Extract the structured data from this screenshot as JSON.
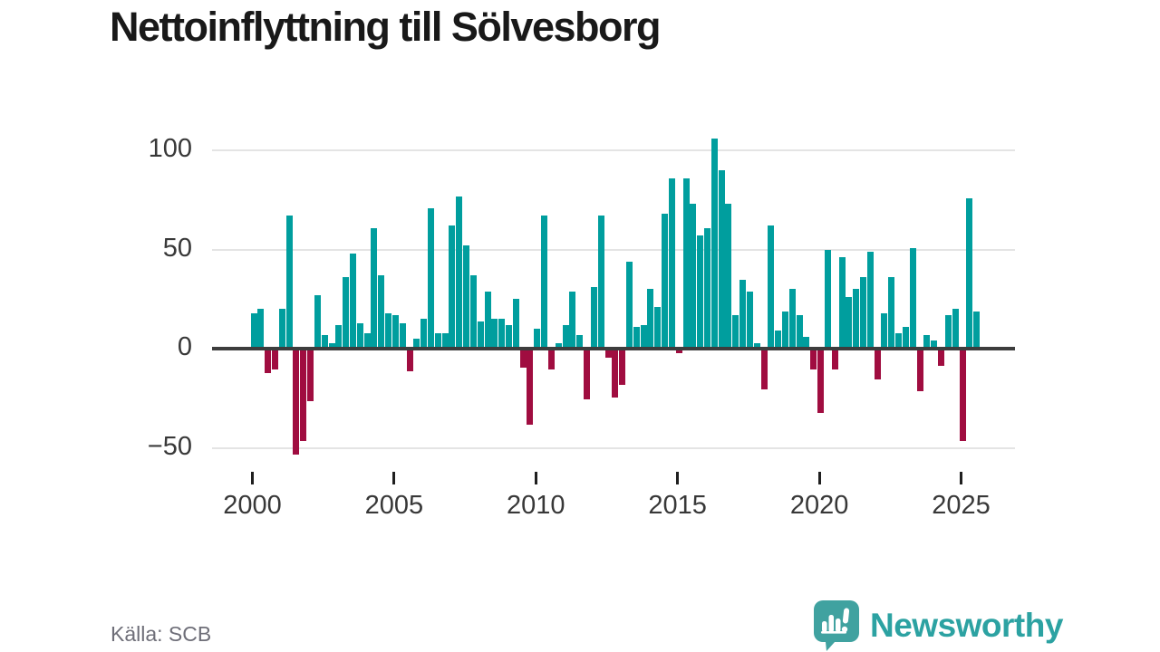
{
  "title": "Nettoinflyttning till Sölvesborg",
  "source": "Källa: SCB",
  "logo": {
    "text": "Newsworthy",
    "icon": "newsworthy-speech-bubble-bar-chart-icon"
  },
  "colors": {
    "positive_bar": "#009e9e",
    "negative_bar": "#a00d40",
    "title_text": "#191919",
    "axis_text": "#383838",
    "gridline": "#e4e4e4",
    "zero_line": "#3d3d3d",
    "source_text": "#6e6e78",
    "logo_teal": "#40a2a0"
  },
  "chart_data": {
    "type": "bar",
    "title": "Nettoinflyttning till Sölvesborg",
    "frequency": "quarterly",
    "start_period": "2000-Q1",
    "end_period": "2025-Q3",
    "values": [
      17,
      19,
      -12,
      -10,
      19,
      66,
      -53,
      -46,
      -26,
      26,
      6,
      2,
      11,
      35,
      47,
      12,
      7,
      60,
      36,
      17,
      16,
      12,
      -11,
      4,
      14,
      70,
      7,
      7,
      61,
      76,
      51,
      36,
      13,
      28,
      14,
      14,
      11,
      24,
      -9,
      -38,
      9,
      66,
      -10,
      2,
      11,
      28,
      6,
      -25,
      30,
      66,
      -4,
      -24,
      -18,
      43,
      10,
      11,
      29,
      20,
      67,
      85,
      -2,
      85,
      72,
      56,
      60,
      105,
      89,
      72,
      16,
      34,
      28,
      2,
      -20,
      61,
      8,
      18,
      29,
      16,
      5,
      -10,
      -32,
      49,
      -10,
      45,
      25,
      29,
      35,
      48,
      -15,
      17,
      35,
      7,
      10,
      50,
      -21,
      6,
      3,
      -8,
      16,
      19,
      -46,
      75,
      18
    ],
    "x_ticks_every_n_quarters": 20,
    "x_tick_labels": [
      "2000",
      "2005",
      "2010",
      "2015",
      "2020",
      "2025"
    ],
    "y_ticks": [
      100,
      50,
      0,
      -50
    ],
    "y_tick_labels": [
      "100",
      "50",
      "0",
      "−50"
    ],
    "ylim": [
      -60,
      112
    ],
    "grid": "horizontal",
    "legend": "none"
  }
}
